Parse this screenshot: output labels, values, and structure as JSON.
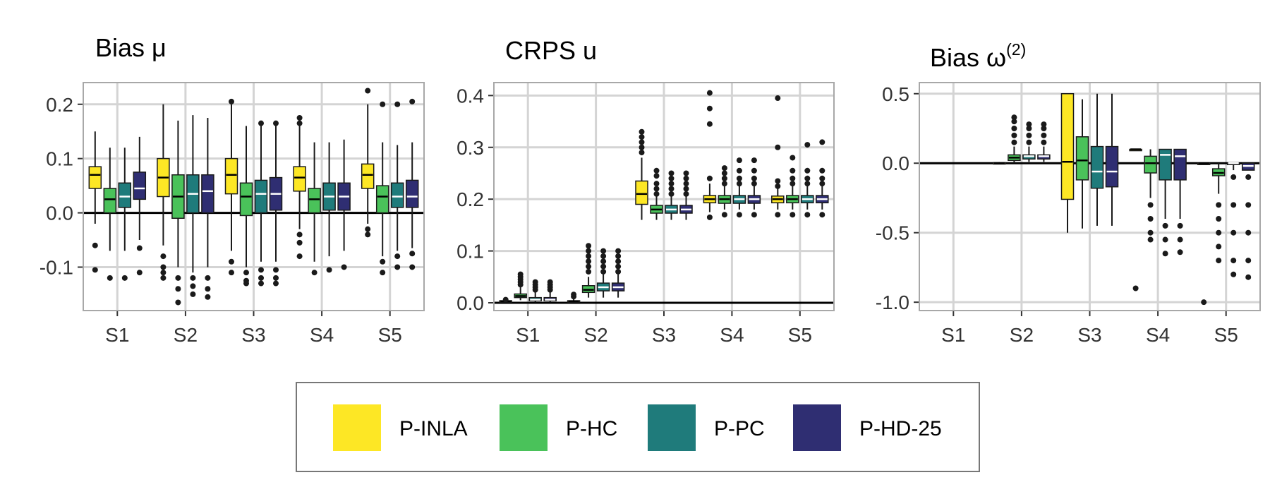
{
  "legend": {
    "items": [
      {
        "label": "P-INLA",
        "color": "#FDE725",
        "median_color": "#000000"
      },
      {
        "label": "P-HC",
        "color": "#4AC25A",
        "median_color": "#000000"
      },
      {
        "label": "P-PC",
        "color": "#1F7B7B",
        "median_color": "#FFFFFF"
      },
      {
        "label": "P-HD-25",
        "color": "#2F2E72",
        "median_color": "#FFFFFF"
      }
    ]
  },
  "chart_data": [
    {
      "type": "boxplot",
      "title": "Bias μ",
      "categories": [
        "S1",
        "S2",
        "S3",
        "S4",
        "S5"
      ],
      "ylim": [
        -0.18,
        0.24
      ],
      "yticks": [
        -0.1,
        0.0,
        0.1,
        0.2
      ],
      "ytick_labels": [
        "-0.1",
        "0.0",
        "0.1",
        "0.2"
      ],
      "reference_line": 0,
      "series": [
        {
          "name": "P-INLA",
          "boxes": [
            {
              "low": -0.02,
              "q1": 0.045,
              "median": 0.07,
              "q3": 0.085,
              "high": 0.15,
              "outliers": [
                -0.06,
                -0.105
              ]
            },
            {
              "low": -0.06,
              "q1": 0.03,
              "median": 0.065,
              "q3": 0.1,
              "high": 0.2,
              "outliers": [
                -0.08,
                -0.1,
                -0.11,
                -0.12
              ]
            },
            {
              "low": -0.07,
              "q1": 0.035,
              "median": 0.07,
              "q3": 0.1,
              "high": 0.2,
              "outliers": [
                -0.09,
                -0.11,
                0.205
              ]
            },
            {
              "low": -0.03,
              "q1": 0.04,
              "median": 0.065,
              "q3": 0.085,
              "high": 0.16,
              "outliers": [
                -0.04,
                -0.055,
                -0.08,
                0.165,
                0.175
              ]
            },
            {
              "low": -0.02,
              "q1": 0.045,
              "median": 0.07,
              "q3": 0.09,
              "high": 0.2,
              "outliers": [
                -0.03,
                -0.04,
                0.225
              ]
            }
          ]
        },
        {
          "name": "P-HC",
          "boxes": [
            {
              "low": -0.07,
              "q1": 0.0,
              "median": 0.025,
              "q3": 0.045,
              "high": 0.12,
              "outliers": [
                -0.12
              ]
            },
            {
              "low": -0.1,
              "q1": -0.01,
              "median": 0.03,
              "q3": 0.07,
              "high": 0.17,
              "outliers": [
                -0.12,
                -0.14,
                -0.165
              ]
            },
            {
              "low": -0.1,
              "q1": -0.005,
              "median": 0.03,
              "q3": 0.055,
              "high": 0.16,
              "outliers": [
                -0.11,
                -0.125,
                -0.13
              ]
            },
            {
              "low": -0.09,
              "q1": 0.0,
              "median": 0.025,
              "q3": 0.045,
              "high": 0.13,
              "outliers": [
                -0.11
              ]
            },
            {
              "low": -0.08,
              "q1": 0.0,
              "median": 0.03,
              "q3": 0.05,
              "high": 0.13,
              "outliers": [
                -0.09,
                -0.11,
                0.2
              ]
            }
          ]
        },
        {
          "name": "P-PC",
          "boxes": [
            {
              "low": -0.07,
              "q1": 0.01,
              "median": 0.03,
              "q3": 0.055,
              "high": 0.12,
              "outliers": [
                -0.12
              ]
            },
            {
              "low": -0.11,
              "q1": 0.0,
              "median": 0.035,
              "q3": 0.07,
              "high": 0.18,
              "outliers": [
                -0.12,
                -0.135,
                -0.15
              ]
            },
            {
              "low": -0.09,
              "q1": 0.0,
              "median": 0.035,
              "q3": 0.06,
              "high": 0.16,
              "outliers": [
                -0.105,
                -0.12,
                -0.13,
                0.165
              ]
            },
            {
              "low": -0.08,
              "q1": 0.005,
              "median": 0.03,
              "q3": 0.055,
              "high": 0.13,
              "outliers": [
                -0.105
              ]
            },
            {
              "low": -0.07,
              "q1": 0.01,
              "median": 0.03,
              "q3": 0.055,
              "high": 0.125,
              "outliers": [
                -0.08,
                -0.1,
                0.2
              ]
            }
          ]
        },
        {
          "name": "P-HD-25",
          "boxes": [
            {
              "low": -0.05,
              "q1": 0.025,
              "median": 0.045,
              "q3": 0.075,
              "high": 0.14,
              "outliers": [
                -0.065,
                -0.11
              ]
            },
            {
              "low": -0.1,
              "q1": 0.0,
              "median": 0.04,
              "q3": 0.07,
              "high": 0.175,
              "outliers": [
                -0.12,
                -0.14,
                -0.155
              ]
            },
            {
              "low": -0.09,
              "q1": 0.005,
              "median": 0.035,
              "q3": 0.065,
              "high": 0.16,
              "outliers": [
                -0.105,
                -0.12,
                -0.13,
                0.165
              ]
            },
            {
              "low": -0.07,
              "q1": 0.005,
              "median": 0.03,
              "q3": 0.055,
              "high": 0.135,
              "outliers": [
                -0.1
              ]
            },
            {
              "low": -0.065,
              "q1": 0.01,
              "median": 0.03,
              "q3": 0.06,
              "high": 0.13,
              "outliers": [
                -0.075,
                -0.1,
                0.205
              ]
            }
          ]
        }
      ]
    },
    {
      "type": "boxplot",
      "title": "CRPS u",
      "categories": [
        "S1",
        "S2",
        "S3",
        "S4",
        "S5"
      ],
      "ylim": [
        -0.015,
        0.425
      ],
      "yticks": [
        0.0,
        0.1,
        0.2,
        0.3,
        0.4
      ],
      "ytick_labels": [
        "0.0",
        "0.1",
        "0.2",
        "0.3",
        "0.4"
      ],
      "reference_line": 0,
      "series": [
        {
          "name": "P-INLA",
          "boxes": [
            {
              "low": 0.001,
              "q1": 0.002,
              "median": 0.003,
              "q3": 0.004,
              "high": 0.005,
              "outliers": [
                0.006
              ]
            },
            {
              "low": 0.001,
              "q1": 0.002,
              "median": 0.003,
              "q3": 0.004,
              "high": 0.008,
              "outliers": [
                0.012,
                0.016
              ]
            },
            {
              "low": 0.16,
              "q1": 0.19,
              "median": 0.21,
              "q3": 0.235,
              "high": 0.28,
              "outliers": [
                0.29,
                0.3,
                0.31,
                0.32,
                0.33
              ]
            },
            {
              "low": 0.175,
              "q1": 0.193,
              "median": 0.2,
              "q3": 0.207,
              "high": 0.23,
              "outliers": [
                0.165,
                0.24,
                0.345,
                0.375,
                0.405
              ]
            },
            {
              "low": 0.18,
              "q1": 0.193,
              "median": 0.2,
              "q3": 0.206,
              "high": 0.22,
              "outliers": [
                0.17,
                0.225,
                0.235,
                0.3,
                0.395
              ]
            }
          ]
        },
        {
          "name": "P-HC",
          "boxes": [
            {
              "low": 0.005,
              "q1": 0.01,
              "median": 0.013,
              "q3": 0.017,
              "high": 0.03,
              "outliers": [
                0.035,
                0.04,
                0.045,
                0.05,
                0.055
              ]
            },
            {
              "low": 0.01,
              "q1": 0.02,
              "median": 0.025,
              "q3": 0.033,
              "high": 0.05,
              "outliers": [
                0.06,
                0.07,
                0.08,
                0.09,
                0.1,
                0.11
              ]
            },
            {
              "low": 0.16,
              "q1": 0.173,
              "median": 0.18,
              "q3": 0.188,
              "high": 0.205,
              "outliers": [
                0.21,
                0.22,
                0.23,
                0.245,
                0.255
              ]
            },
            {
              "low": 0.18,
              "q1": 0.192,
              "median": 0.2,
              "q3": 0.207,
              "high": 0.225,
              "outliers": [
                0.17,
                0.23,
                0.24,
                0.25,
                0.26
              ]
            },
            {
              "low": 0.18,
              "q1": 0.193,
              "median": 0.2,
              "q3": 0.207,
              "high": 0.225,
              "outliers": [
                0.17,
                0.23,
                0.24,
                0.255,
                0.28
              ]
            }
          ]
        },
        {
          "name": "P-PC",
          "boxes": [
            {
              "low": 0.001,
              "q1": 0.004,
              "median": 0.006,
              "q3": 0.01,
              "high": 0.02,
              "outliers": [
                0.025,
                0.03,
                0.035,
                0.04
              ]
            },
            {
              "low": 0.01,
              "q1": 0.023,
              "median": 0.03,
              "q3": 0.038,
              "high": 0.055,
              "outliers": [
                0.06,
                0.07,
                0.08,
                0.09,
                0.1
              ]
            },
            {
              "low": 0.16,
              "q1": 0.173,
              "median": 0.18,
              "q3": 0.188,
              "high": 0.205,
              "outliers": [
                0.21,
                0.22,
                0.23,
                0.24,
                0.25
              ]
            },
            {
              "low": 0.18,
              "q1": 0.192,
              "median": 0.2,
              "q3": 0.207,
              "high": 0.225,
              "outliers": [
                0.17,
                0.23,
                0.24,
                0.255,
                0.275
              ]
            },
            {
              "low": 0.18,
              "q1": 0.193,
              "median": 0.2,
              "q3": 0.207,
              "high": 0.225,
              "outliers": [
                0.17,
                0.23,
                0.24,
                0.255,
                0.305
              ]
            }
          ]
        },
        {
          "name": "P-HD-25",
          "boxes": [
            {
              "low": 0.001,
              "q1": 0.004,
              "median": 0.006,
              "q3": 0.01,
              "high": 0.02,
              "outliers": [
                0.025,
                0.03,
                0.035,
                0.04
              ]
            },
            {
              "low": 0.01,
              "q1": 0.023,
              "median": 0.03,
              "q3": 0.038,
              "high": 0.055,
              "outliers": [
                0.06,
                0.07,
                0.08,
                0.09,
                0.1
              ]
            },
            {
              "low": 0.16,
              "q1": 0.173,
              "median": 0.18,
              "q3": 0.188,
              "high": 0.205,
              "outliers": [
                0.21,
                0.22,
                0.23,
                0.24,
                0.25
              ]
            },
            {
              "low": 0.18,
              "q1": 0.192,
              "median": 0.2,
              "q3": 0.207,
              "high": 0.225,
              "outliers": [
                0.17,
                0.23,
                0.24,
                0.255,
                0.275
              ]
            },
            {
              "low": 0.18,
              "q1": 0.193,
              "median": 0.2,
              "q3": 0.207,
              "high": 0.225,
              "outliers": [
                0.17,
                0.23,
                0.24,
                0.255,
                0.31
              ]
            }
          ]
        }
      ]
    },
    {
      "type": "boxplot",
      "title": "Bias ω",
      "title_superscript": "(2)",
      "categories": [
        "S1",
        "S2",
        "S3",
        "S4",
        "S5"
      ],
      "ylim": [
        -1.06,
        0.58
      ],
      "yticks": [
        -1.0,
        -0.5,
        0.0,
        0.5
      ],
      "ytick_labels": [
        "-1.0",
        "-0.5",
        "0.0",
        "0.5"
      ],
      "reference_line": 0,
      "series": [
        {
          "name": "P-INLA",
          "boxes": [
            null,
            {
              "low": -0.008,
              "q1": -0.004,
              "median": 0.0,
              "q3": 0.004,
              "high": 0.008,
              "outliers": []
            },
            {
              "low": -0.5,
              "q1": -0.26,
              "median": 0.01,
              "q3": 0.5,
              "high": 0.5,
              "outliers": []
            },
            {
              "low": 0.095,
              "q1": 0.1,
              "median": 0.1,
              "q3": 0.1,
              "high": 0.105,
              "outliers": [
                -0.9
              ]
            },
            {
              "low": -0.005,
              "q1": 0.0,
              "median": 0.0,
              "q3": 0.0,
              "high": 0.005,
              "outliers": [
                -1.0
              ]
            }
          ]
        },
        {
          "name": "P-HC",
          "boxes": [
            null,
            {
              "low": 0.0,
              "q1": 0.02,
              "median": 0.04,
              "q3": 0.06,
              "high": 0.12,
              "outliers": [
                0.15,
                0.2,
                0.25,
                0.3,
                0.33
              ]
            },
            {
              "low": -0.47,
              "q1": -0.12,
              "median": 0.02,
              "q3": 0.19,
              "high": 0.46,
              "outliers": []
            },
            {
              "low": -0.25,
              "q1": -0.07,
              "median": 0.0,
              "q3": 0.05,
              "high": 0.1,
              "outliers": [
                -0.3,
                -0.4,
                -0.5,
                -0.55
              ]
            },
            {
              "low": -0.22,
              "q1": -0.09,
              "median": -0.07,
              "q3": -0.04,
              "high": 0.0,
              "outliers": [
                -0.3,
                -0.4,
                -0.5,
                -0.6,
                -0.7
              ]
            }
          ]
        },
        {
          "name": "P-PC",
          "boxes": [
            null,
            {
              "low": 0.01,
              "q1": 0.03,
              "median": 0.05,
              "q3": 0.06,
              "high": 0.12,
              "outliers": [
                0.15,
                0.2,
                0.25,
                0.28
              ]
            },
            {
              "low": -0.45,
              "q1": -0.18,
              "median": -0.06,
              "q3": 0.12,
              "high": 0.5,
              "outliers": []
            },
            {
              "low": -0.4,
              "q1": -0.12,
              "median": 0.06,
              "q3": 0.1,
              "high": 0.1,
              "outliers": [
                -0.45,
                -0.55,
                -0.65
              ]
            },
            {
              "low": -0.05,
              "q1": -0.01,
              "median": 0.0,
              "q3": 0.0,
              "high": 0.0,
              "outliers": [
                -0.1,
                -0.3,
                -0.5,
                -0.7,
                -0.8
              ]
            }
          ]
        },
        {
          "name": "P-HD-25",
          "boxes": [
            null,
            {
              "low": 0.01,
              "q1": 0.03,
              "median": 0.05,
              "q3": 0.06,
              "high": 0.12,
              "outliers": [
                0.15,
                0.2,
                0.25,
                0.28
              ]
            },
            {
              "low": -0.45,
              "q1": -0.17,
              "median": -0.06,
              "q3": 0.12,
              "high": 0.5,
              "outliers": []
            },
            {
              "low": -0.4,
              "q1": -0.12,
              "median": 0.05,
              "q3": 0.1,
              "high": 0.1,
              "outliers": [
                -0.45,
                -0.55,
                -0.64
              ]
            },
            {
              "low": -0.05,
              "q1": -0.05,
              "median": -0.02,
              "q3": 0.0,
              "high": 0.0,
              "outliers": [
                -0.1,
                -0.3,
                -0.5,
                -0.7,
                -0.82
              ]
            }
          ]
        }
      ]
    }
  ]
}
